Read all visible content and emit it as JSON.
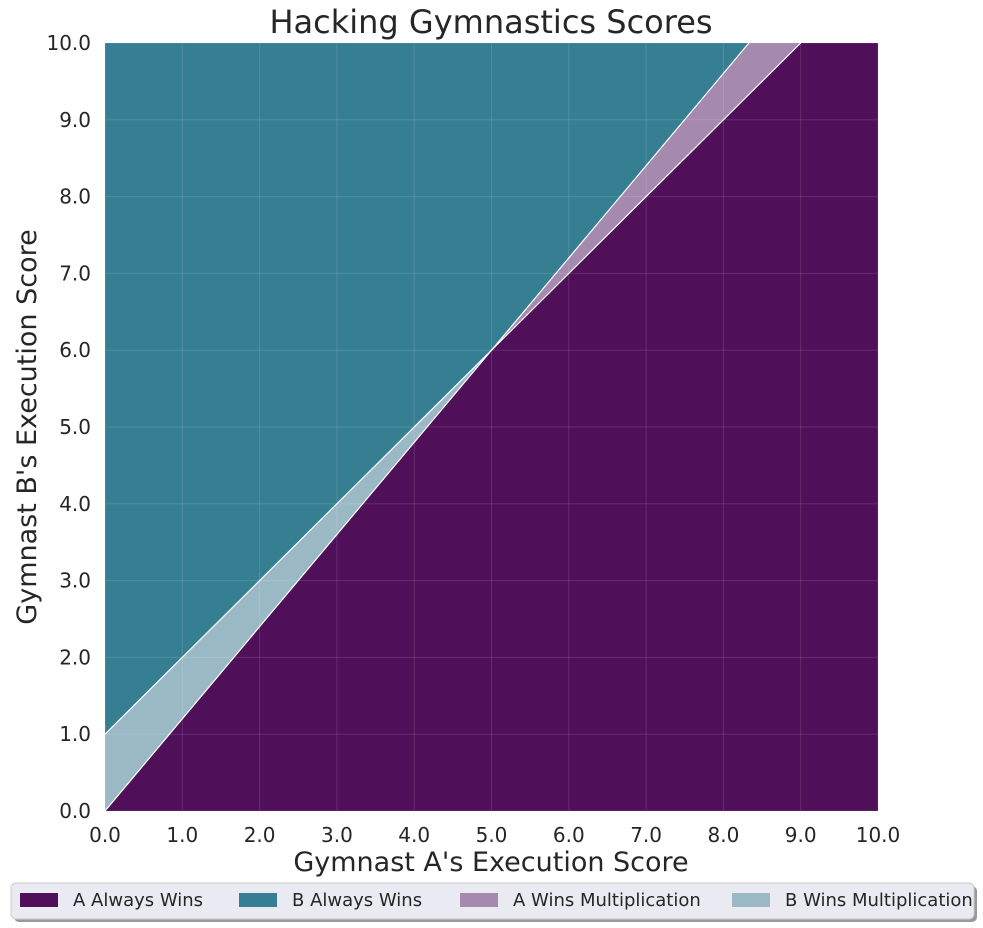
{
  "chart_data": {
    "type": "area",
    "title": "Hacking Gymnastics Scores",
    "xlabel": "Gymnast A's Execution Score",
    "ylabel": "Gymnast B's Execution Score",
    "xlim": [
      0,
      10
    ],
    "ylim": [
      0,
      10
    ],
    "x_ticks": [
      "0.0",
      "1.0",
      "2.0",
      "3.0",
      "4.0",
      "5.0",
      "6.0",
      "7.0",
      "8.0",
      "9.0",
      "10.0"
    ],
    "y_ticks": [
      "0.0",
      "1.0",
      "2.0",
      "3.0",
      "4.0",
      "5.0",
      "6.0",
      "7.0",
      "8.0",
      "9.0",
      "10.0"
    ],
    "grid": true,
    "legend_position": "bottom",
    "series": [
      {
        "name": "A Always Wins",
        "color": "#4f1059",
        "polygon": [
          [
            0,
            0
          ],
          [
            10,
            0
          ],
          [
            10,
            10
          ],
          [
            9,
            10
          ],
          [
            5,
            6
          ],
          [
            1,
            1.2
          ],
          [
            0,
            0
          ]
        ]
      },
      {
        "name": "B Always Wins",
        "color": "#367f93",
        "polygon": [
          [
            0,
            1
          ],
          [
            1,
            2
          ],
          [
            5,
            6
          ],
          [
            8.33,
            10
          ],
          [
            0,
            10
          ]
        ]
      },
      {
        "name": "A Wins Multiplication",
        "color": "#a689ae",
        "polygon": [
          [
            5,
            6
          ],
          [
            8.33,
            10
          ],
          [
            9,
            10
          ]
        ]
      },
      {
        "name": "B Wins Multiplication",
        "color": "#9bb9c5",
        "polygon": [
          [
            0,
            0
          ],
          [
            0,
            1
          ],
          [
            1,
            2
          ],
          [
            5,
            6
          ],
          [
            1,
            1.2
          ]
        ]
      }
    ],
    "legend": [
      "A Always Wins",
      "B Always Wins",
      "A Wins Multiplication",
      "B Wins Multiplication"
    ]
  }
}
